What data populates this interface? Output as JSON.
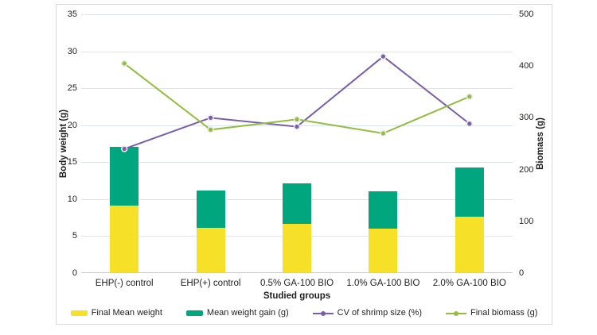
{
  "chart_data": {
    "type": "combo",
    "title": "",
    "categories": [
      "EHP(-) control",
      "EHP(+) control",
      "0.5% GA-100 BIO",
      "1.0% GA-100 BIO",
      "2.0% GA-100 BIO"
    ],
    "xlabel": "Studied groups",
    "ylabel_left": "Body weight (g)",
    "ylabel_right": "Biomass (g)",
    "ylim_left": [
      0,
      35
    ],
    "ylim_right": [
      0,
      500
    ],
    "yticks_left": [
      0,
      5,
      10,
      15,
      20,
      25,
      30,
      35
    ],
    "yticks_right": [
      0,
      100,
      200,
      300,
      400,
      500
    ],
    "grid": "horizontal",
    "legend_position": "bottom",
    "series": [
      {
        "name": "Final Mean weight",
        "type": "bar",
        "stack": "weight",
        "axis": "left",
        "color": "#F7E028",
        "values": [
          9.0,
          6.0,
          6.5,
          5.9,
          7.5
        ]
      },
      {
        "name": "Mean weight gain (g)",
        "type": "bar",
        "stack": "weight",
        "axis": "left",
        "color": "#00A77E",
        "values": [
          8.0,
          5.1,
          5.5,
          5.0,
          6.7
        ]
      },
      {
        "name": "CV of shrimp size (%)",
        "type": "line",
        "axis": "left",
        "color": "#7A5EA8",
        "values": [
          16.8,
          21.0,
          19.8,
          29.3,
          20.2
        ]
      },
      {
        "name": "Final biomass (g)",
        "type": "line",
        "axis": "right",
        "color": "#92BD3F",
        "values": [
          405,
          277,
          297,
          270,
          341
        ]
      }
    ],
    "colors": {
      "gridline": "#dbe5f1",
      "axis_line": "#c4cdd6",
      "card_border": "#d8d8d8",
      "text": "#1f1f1f",
      "marker_ring": "#e9e9e9"
    }
  }
}
